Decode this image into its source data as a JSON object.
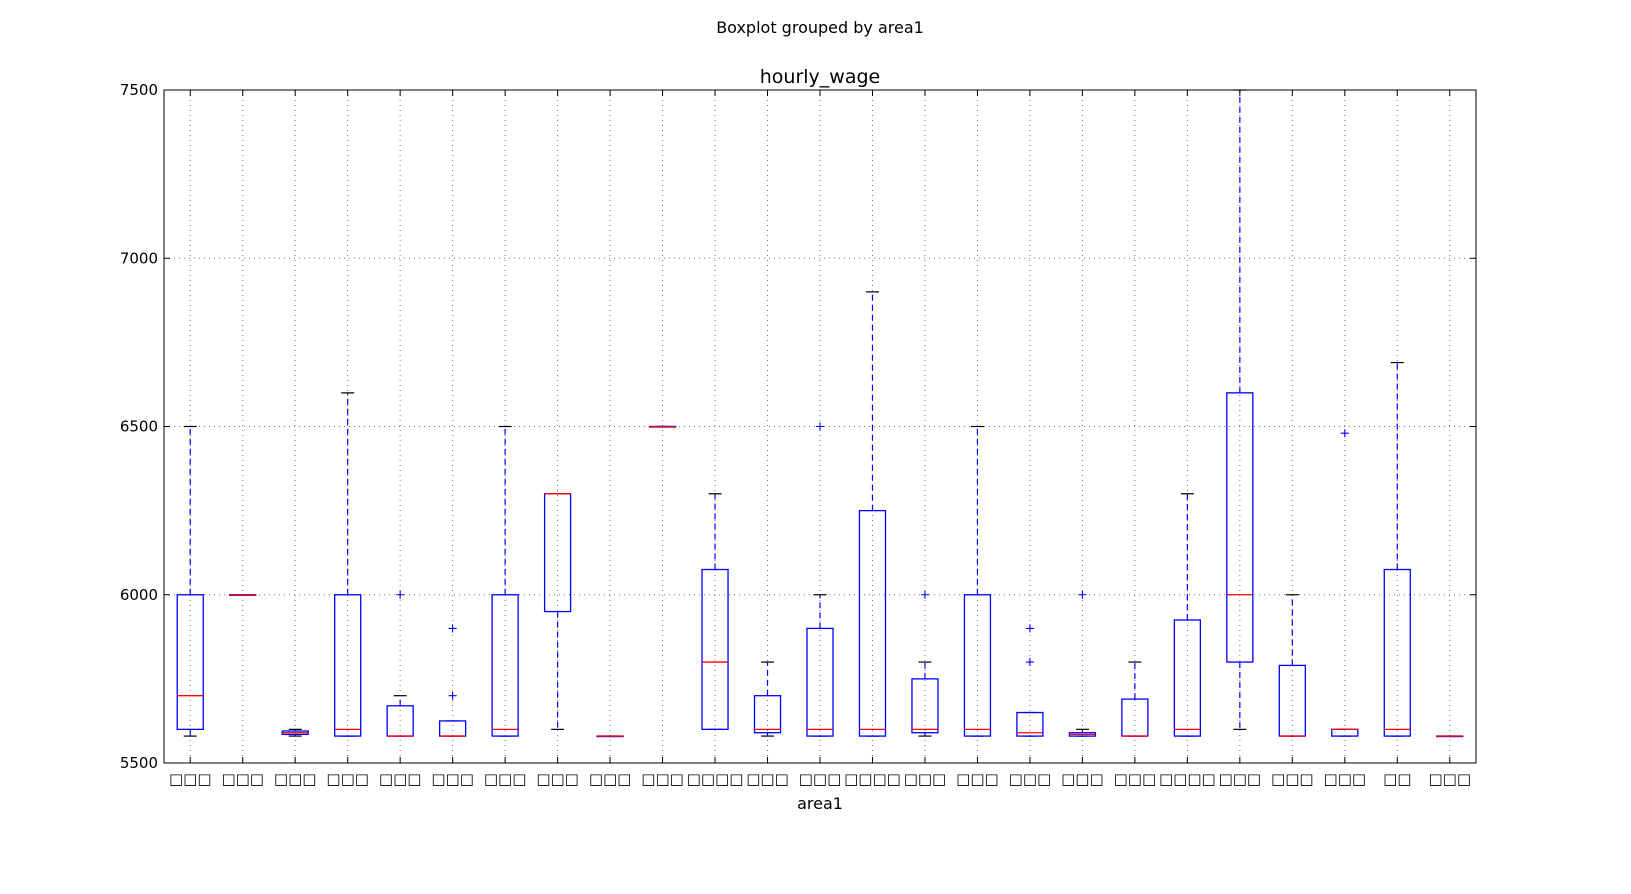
{
  "chart_data": {
    "type": "boxplot",
    "suptitle": "Boxplot grouped by area1",
    "title": "hourly_wage",
    "xlabel": "area1",
    "ylabel": "",
    "ylim": [
      5500,
      7500
    ],
    "yticks": [
      5500,
      6000,
      6500,
      7000,
      7500
    ],
    "grid": true,
    "colors": {
      "box": "#0000ff",
      "median": "#ff0000",
      "cap": "#000000",
      "grid": "#777777",
      "flier": "#0000ff"
    },
    "categories": [
      "□□□",
      "□□□",
      "□□□",
      "□□□",
      "□□□",
      "□□□",
      "□□□",
      "□□□",
      "□□□",
      "□□□",
      "□□□□",
      "□□□",
      "□□□",
      "□□□□",
      "□□□",
      "□□□",
      "□□□",
      "□□□",
      "□□□",
      "□□□□",
      "□□□",
      "□□□",
      "□□□",
      "□□",
      "□□□"
    ],
    "boxes": [
      {
        "whislo": 5580,
        "q1": 5600,
        "med": 5700,
        "q3": 6000,
        "whishi": 6500,
        "fliers": []
      },
      {
        "whislo": 6000,
        "q1": 6000,
        "med": 6000,
        "q3": 6000,
        "whishi": 6000,
        "fliers": []
      },
      {
        "whislo": 5580,
        "q1": 5585,
        "med": 5590,
        "q3": 5595,
        "whishi": 5600,
        "fliers": []
      },
      {
        "whislo": 5580,
        "q1": 5580,
        "med": 5600,
        "q3": 6000,
        "whishi": 6600,
        "fliers": []
      },
      {
        "whislo": 5580,
        "q1": 5580,
        "med": 5580,
        "q3": 5670,
        "whishi": 5700,
        "fliers": [
          6000
        ]
      },
      {
        "whislo": 5580,
        "q1": 5580,
        "med": 5580,
        "q3": 5625,
        "whishi": 5625,
        "fliers": [
          5700,
          5900
        ]
      },
      {
        "whislo": 5580,
        "q1": 5580,
        "med": 5600,
        "q3": 6000,
        "whishi": 6500,
        "fliers": []
      },
      {
        "whislo": 5600,
        "q1": 5950,
        "med": 6300,
        "q3": 6300,
        "whishi": 6300,
        "fliers": []
      },
      {
        "whislo": 5580,
        "q1": 5580,
        "med": 5580,
        "q3": 5580,
        "whishi": 5580,
        "fliers": []
      },
      {
        "whislo": 6500,
        "q1": 6500,
        "med": 6500,
        "q3": 6500,
        "whishi": 6500,
        "fliers": []
      },
      {
        "whislo": 5600,
        "q1": 5600,
        "med": 5800,
        "q3": 6075,
        "whishi": 6300,
        "fliers": []
      },
      {
        "whislo": 5580,
        "q1": 5590,
        "med": 5600,
        "q3": 5700,
        "whishi": 5800,
        "fliers": []
      },
      {
        "whislo": 5580,
        "q1": 5580,
        "med": 5600,
        "q3": 5900,
        "whishi": 6000,
        "fliers": [
          6500
        ]
      },
      {
        "whislo": 5580,
        "q1": 5580,
        "med": 5600,
        "q3": 6250,
        "whishi": 6900,
        "fliers": []
      },
      {
        "whislo": 5580,
        "q1": 5590,
        "med": 5600,
        "q3": 5750,
        "whishi": 5800,
        "fliers": [
          6000
        ]
      },
      {
        "whislo": 5580,
        "q1": 5580,
        "med": 5600,
        "q3": 6000,
        "whishi": 6500,
        "fliers": []
      },
      {
        "whislo": 5580,
        "q1": 5580,
        "med": 5590,
        "q3": 5650,
        "whishi": 5650,
        "fliers": [
          5800,
          5900
        ]
      },
      {
        "whislo": 5580,
        "q1": 5580,
        "med": 5585,
        "q3": 5590,
        "whishi": 5600,
        "fliers": [
          6000
        ]
      },
      {
        "whislo": 5580,
        "q1": 5580,
        "med": 5580,
        "q3": 5690,
        "whishi": 5800,
        "fliers": []
      },
      {
        "whislo": 5580,
        "q1": 5580,
        "med": 5600,
        "q3": 5925,
        "whishi": 6300,
        "fliers": []
      },
      {
        "whislo": 5600,
        "q1": 5800,
        "med": 6000,
        "q3": 6600,
        "whishi": 7500,
        "fliers": []
      },
      {
        "whislo": 5580,
        "q1": 5580,
        "med": 5580,
        "q3": 5790,
        "whishi": 6000,
        "fliers": []
      },
      {
        "whislo": 5580,
        "q1": 5580,
        "med": 5600,
        "q3": 5600,
        "whishi": 5600,
        "fliers": [
          6480
        ]
      },
      {
        "whislo": 5580,
        "q1": 5580,
        "med": 5600,
        "q3": 6075,
        "whishi": 6690,
        "fliers": []
      },
      {
        "whislo": 5580,
        "q1": 5580,
        "med": 5580,
        "q3": 5580,
        "whishi": 5580,
        "fliers": []
      }
    ]
  }
}
